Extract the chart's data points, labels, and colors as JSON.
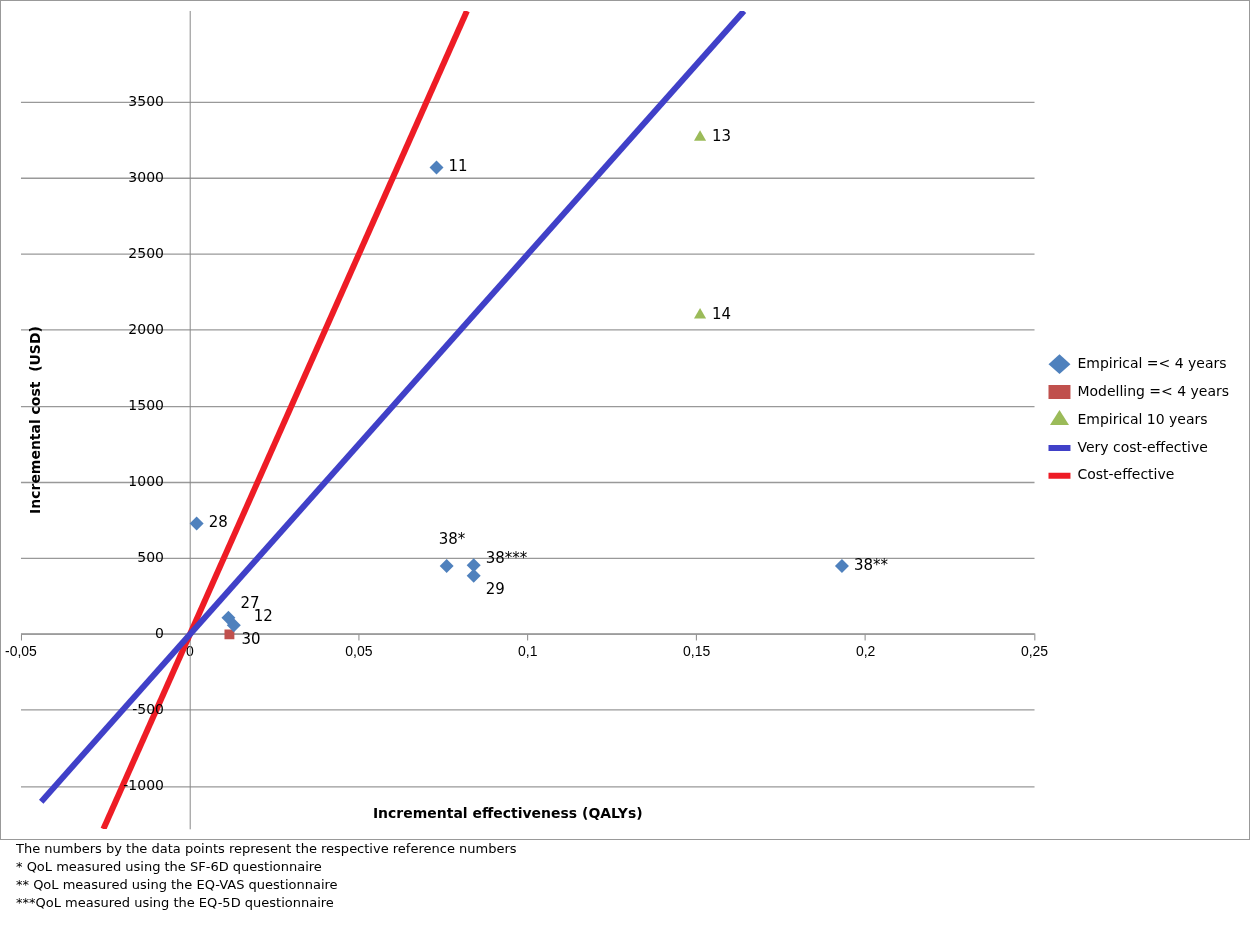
{
  "chart_data": {
    "type": "scatter",
    "xlabel": "Incremental effectiveness (QALYs)",
    "ylabel": "Incremental cost  (USD)",
    "xlim": [
      -0.05,
      0.25
    ],
    "xticks": [
      {
        "value": -0.05,
        "label": "-0,05"
      },
      0,
      {
        "value": 0.05,
        "label": "0,05"
      },
      {
        "value": 0.1,
        "label": "0,1"
      },
      {
        "value": 0.15,
        "label": "0,15"
      },
      {
        "value": 0.2,
        "label": "0,2"
      },
      {
        "value": 0.25,
        "label": "0,25"
      }
    ],
    "ylim": [
      -1280,
      4100
    ],
    "yticks": [
      -1000,
      -500,
      0,
      500,
      1000,
      1500,
      2000,
      2500,
      3000,
      3500
    ],
    "grid": "y",
    "legend": "right",
    "series": [
      {
        "name": "Empirical =< 4 years",
        "color": "#4f81bd",
        "marker": "diamond",
        "x": [
          0.073,
          0.002,
          0.076,
          0.084,
          0.084,
          0.193,
          0.0114,
          0.013
        ],
        "values": [
          3070,
          730,
          450,
          455,
          385,
          450,
          110,
          60
        ]
      },
      {
        "name": "Modelling =< 4 years",
        "color": "#c0504d",
        "marker": "square",
        "x": [
          0.0117
        ],
        "values": [
          0
        ]
      },
      {
        "name": "Empirical 10 years",
        "color": "#9bbb59",
        "marker": "triangle",
        "x": [
          0.151,
          0.151
        ],
        "values": [
          3270,
          2100
        ]
      },
      {
        "name": "Very cost-effective",
        "type": "line",
        "color": "#4040c8",
        "marker": "none",
        "x": [
          -0.044,
          0.164
        ],
        "values": [
          -1100,
          4100
        ]
      },
      {
        "name": "Cost-effective",
        "type": "line",
        "color": "#ee1c25",
        "marker": "none",
        "x": [
          -0.0256,
          0.082
        ],
        "values": [
          -1280,
          4100
        ]
      }
    ],
    "annotations": [
      {
        "text": "11",
        "x": 0.073,
        "y": 3070
      },
      {
        "text": "28",
        "x": 0.002,
        "y": 730
      },
      {
        "text": "38*",
        "x": 0.076,
        "y": 450
      },
      {
        "text": "38***",
        "x": 0.084,
        "y": 455
      },
      {
        "text": "29",
        "x": 0.084,
        "y": 385
      },
      {
        "text": "38**",
        "x": 0.193,
        "y": 450
      },
      {
        "text": "27",
        "x": 0.0114,
        "y": 110
      },
      {
        "text": "12",
        "x": 0.013,
        "y": 60
      },
      {
        "text": "30",
        "x": 0.0117,
        "y": 0
      },
      {
        "text": "13",
        "x": 0.151,
        "y": 3270
      },
      {
        "text": "14",
        "x": 0.151,
        "y": 2100
      },
      "The numbers by the data points represent the respective reference numbers",
      "*   QoL measured using the SF-6D questionnaire",
      "**  QoL measured using the EQ-VAS questionnaire",
      "***QoL measured using the EQ-5D questionnaire"
    ]
  }
}
